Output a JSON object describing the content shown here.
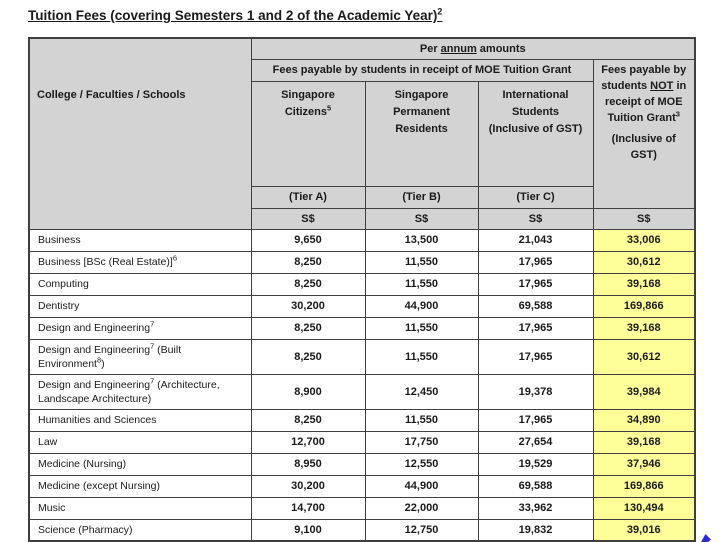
{
  "title": {
    "text": "Tuition Fees (covering Semesters 1 and 2 of the Academic Year)",
    "sup": "2"
  },
  "colors": {
    "header_bg": "#d3d3d3",
    "highlight_bg": "#ffff99",
    "fragment_blue": "#2b2bd5"
  },
  "table": {
    "corner_header": "College / Faculties / Schools",
    "per_annum": {
      "pre": "Per ",
      "u": "annum",
      "post": " amounts"
    },
    "grant_group_header": "Fees payable by students in receipt of MOE Tuition Grant",
    "non_grant": {
      "pre": "Fees payable by students ",
      "u": "NOT",
      "post": " in receipt of MOE Tuition Grant",
      "sup": "3",
      "note": "(Inclusive of GST)"
    },
    "grant_columns": [
      {
        "lines": [
          "Singapore",
          "Citizens"
        ],
        "sup": "5",
        "note": "",
        "tier": "(Tier A)",
        "currency": "S$"
      },
      {
        "lines": [
          "Singapore",
          "Permanent",
          "Residents"
        ],
        "sup": "",
        "note": "",
        "tier": "(Tier B)",
        "currency": "S$"
      },
      {
        "lines": [
          "International",
          "Students"
        ],
        "sup": "",
        "note": "(Inclusive of GST)",
        "tier": "(Tier C)",
        "currency": "S$"
      }
    ],
    "non_grant_currency": "S$",
    "rows": [
      {
        "label": [
          {
            "text": "Business"
          }
        ],
        "values": [
          "9,650",
          "13,500",
          "21,043",
          "33,006"
        ]
      },
      {
        "label": [
          {
            "text": "Business [BSc (Real Estate)]"
          },
          {
            "sup": "6"
          }
        ],
        "values": [
          "8,250",
          "11,550",
          "17,965",
          "30,612"
        ]
      },
      {
        "label": [
          {
            "text": "Computing"
          }
        ],
        "values": [
          "8,250",
          "11,550",
          "17,965",
          "39,168"
        ]
      },
      {
        "label": [
          {
            "text": "Dentistry"
          }
        ],
        "values": [
          "30,200",
          "44,900",
          "69,588",
          "169,866"
        ]
      },
      {
        "label": [
          {
            "text": "Design and Engineering"
          },
          {
            "sup": "7"
          }
        ],
        "values": [
          "8,250",
          "11,550",
          "17,965",
          "39,168"
        ]
      },
      {
        "label": [
          {
            "text": "Design and Engineering"
          },
          {
            "sup": "7"
          },
          {
            "text": " (Built Environment"
          },
          {
            "sup": "8"
          },
          {
            "text": ")"
          }
        ],
        "values": [
          "8,250",
          "11,550",
          "17,965",
          "30,612"
        ]
      },
      {
        "label": [
          {
            "text": "Design and Engineering"
          },
          {
            "sup": "7"
          },
          {
            "text": " (Architecture, Landscape Architecture)"
          }
        ],
        "values": [
          "8,900",
          "12,450",
          "19,378",
          "39,984"
        ]
      },
      {
        "label": [
          {
            "text": "Humanities and Sciences"
          }
        ],
        "values": [
          "8,250",
          "11,550",
          "17,965",
          "34,890"
        ]
      },
      {
        "label": [
          {
            "text": "Law"
          }
        ],
        "values": [
          "12,700",
          "17,750",
          "27,654",
          "39,168"
        ]
      },
      {
        "label": [
          {
            "text": "Medicine (Nursing)"
          }
        ],
        "values": [
          "8,950",
          "12,550",
          "19,529",
          "37,946"
        ]
      },
      {
        "label": [
          {
            "text": "Medicine (except Nursing)"
          }
        ],
        "values": [
          "30,200",
          "44,900",
          "69,588",
          "169,866"
        ]
      },
      {
        "label": [
          {
            "text": "Music"
          }
        ],
        "values": [
          "14,700",
          "22,000",
          "33,962",
          "130,494"
        ]
      },
      {
        "label": [
          {
            "text": "Science (Pharmacy)"
          }
        ],
        "values": [
          "9,100",
          "12,750",
          "19,832",
          "39,016"
        ]
      }
    ]
  }
}
